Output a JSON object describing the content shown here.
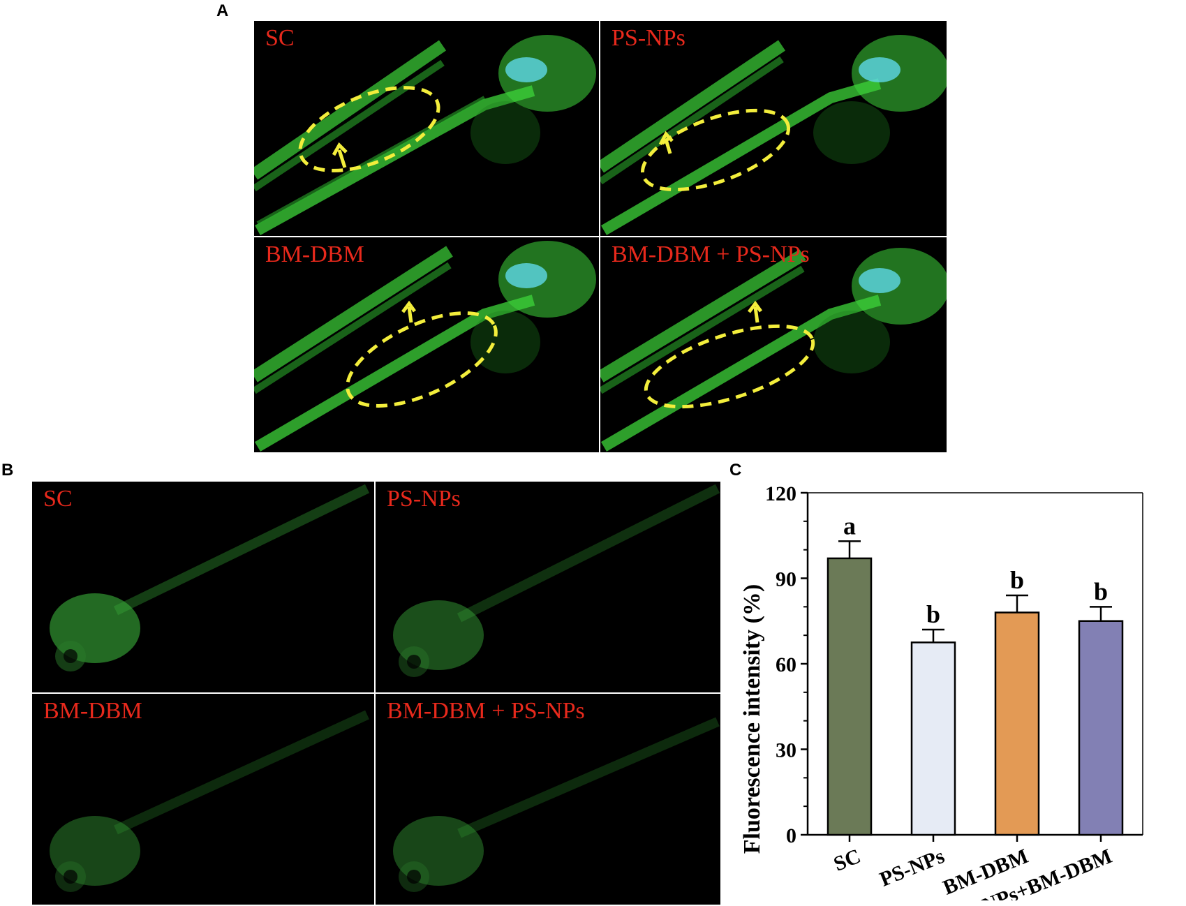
{
  "panel_letters": {
    "a": "A",
    "b": "B",
    "c": "C"
  },
  "panel_a": {
    "image_labels": [
      "SC",
      "PS-NPs",
      "BM-DBM",
      "BM-DBM + PS-NPs"
    ]
  },
  "panel_b": {
    "image_labels": [
      "SC",
      "PS-NPs",
      "BM-DBM",
      "BM-DBM + PS-NPs"
    ]
  },
  "colors": {
    "label_red": "#e8291c",
    "fluorescence_green": "#3ed43a",
    "annotation_yellow": "#f3ee3c",
    "bar_sc": "#6b7a57",
    "bar_psnps": "#e6ebf5",
    "bar_bmdbm": "#e39a55",
    "bar_combo": "#8280b4"
  },
  "chart_data": {
    "type": "bar",
    "categories": [
      "SC",
      "PS-NPs",
      "BM-DBM",
      "PS-NPs+BM-DBM"
    ],
    "values": [
      97,
      67.5,
      78,
      75
    ],
    "errors": [
      6,
      4.5,
      6,
      5
    ],
    "significance_letters": [
      "a",
      "b",
      "b",
      "b"
    ],
    "colors": [
      "#6b7a57",
      "#e6ebf5",
      "#e39a55",
      "#8280b4"
    ],
    "ylabel": "Fluorescence intensity (%)",
    "xlabel": "",
    "ylim": [
      0,
      120
    ],
    "yticks": [
      0,
      30,
      60,
      90,
      120
    ],
    "grid": false
  }
}
